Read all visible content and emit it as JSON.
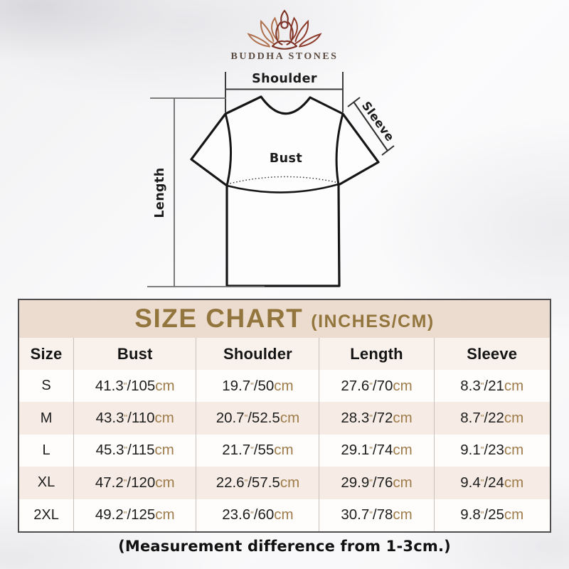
{
  "brand": {
    "name": "BUDDHA STONES"
  },
  "diagram": {
    "shoulder_label": "Shoulder",
    "sleeve_label": "Sleeve",
    "bust_label": "Bust",
    "length_label": "Length"
  },
  "size_chart": {
    "title": "SIZE CHART",
    "unit_note": "(INCHES/CM)",
    "inch_symbol": "\"",
    "separator": "/",
    "cm_symbol": "cm",
    "columns": [
      "Size",
      "Bust",
      "Shoulder",
      "Length",
      "Sleeve"
    ],
    "rows": [
      {
        "size": "S",
        "measurements": [
          {
            "inches": "41.3",
            "cm": "105"
          },
          {
            "inches": "19.7",
            "cm": "50"
          },
          {
            "inches": "27.6",
            "cm": "70"
          },
          {
            "inches": "8.3",
            "cm": "21"
          }
        ]
      },
      {
        "size": "M",
        "measurements": [
          {
            "inches": "43.3",
            "cm": "110"
          },
          {
            "inches": "20.7",
            "cm": "52.5"
          },
          {
            "inches": "28.3",
            "cm": "72"
          },
          {
            "inches": "8.7",
            "cm": "22"
          }
        ]
      },
      {
        "size": "L",
        "measurements": [
          {
            "inches": "45.3",
            "cm": "115"
          },
          {
            "inches": "21.7",
            "cm": "55"
          },
          {
            "inches": "29.1",
            "cm": "74"
          },
          {
            "inches": "9.1",
            "cm": "23"
          }
        ]
      },
      {
        "size": "XL",
        "measurements": [
          {
            "inches": "47.2",
            "cm": "120"
          },
          {
            "inches": "22.6",
            "cm": "57.5"
          },
          {
            "inches": "29.9",
            "cm": "76"
          },
          {
            "inches": "9.4",
            "cm": "24"
          }
        ]
      },
      {
        "size": "2XL",
        "measurements": [
          {
            "inches": "49.2",
            "cm": "125"
          },
          {
            "inches": "23.6",
            "cm": "60"
          },
          {
            "inches": "30.7",
            "cm": "78"
          },
          {
            "inches": "9.8",
            "cm": "25"
          }
        ]
      }
    ]
  },
  "footer": {
    "note": "(Measurement difference from 1-3cm.)"
  },
  "colors": {
    "title_gold": "#93753e",
    "accent_tan": "#9e7c4a",
    "title_band_bg": "#ecdccf",
    "header_row_bg": "#f8f1ec",
    "alt_row_bg": "#f6ece5",
    "logo_left_petals": "#b0714f",
    "logo_right_petals": "#8d3c2c",
    "logo_figure": "#7d3426"
  },
  "chart_data": {
    "type": "table",
    "title": "SIZE CHART (INCHES/CM)",
    "columns": [
      "Size",
      "Bust",
      "Shoulder",
      "Length",
      "Sleeve"
    ],
    "rows": [
      [
        "S",
        "41.3\"/105cm",
        "19.7\"/50cm",
        "27.6\"/70cm",
        "8.3\"/21cm"
      ],
      [
        "M",
        "43.3\"/110cm",
        "20.7\"/52.5cm",
        "28.3\"/72cm",
        "8.7\"/22cm"
      ],
      [
        "L",
        "45.3\"/115cm",
        "21.7\"/55cm",
        "29.1\"/74cm",
        "9.1\"/23cm"
      ],
      [
        "XL",
        "47.2\"/120cm",
        "22.6\"/57.5cm",
        "29.9\"/76cm",
        "9.4\"/24cm"
      ],
      [
        "2XL",
        "49.2\"/125cm",
        "23.6\"/60cm",
        "30.7\"/78cm",
        "9.8\"/25cm"
      ]
    ],
    "note": "(Measurement difference from 1-3cm.)"
  }
}
